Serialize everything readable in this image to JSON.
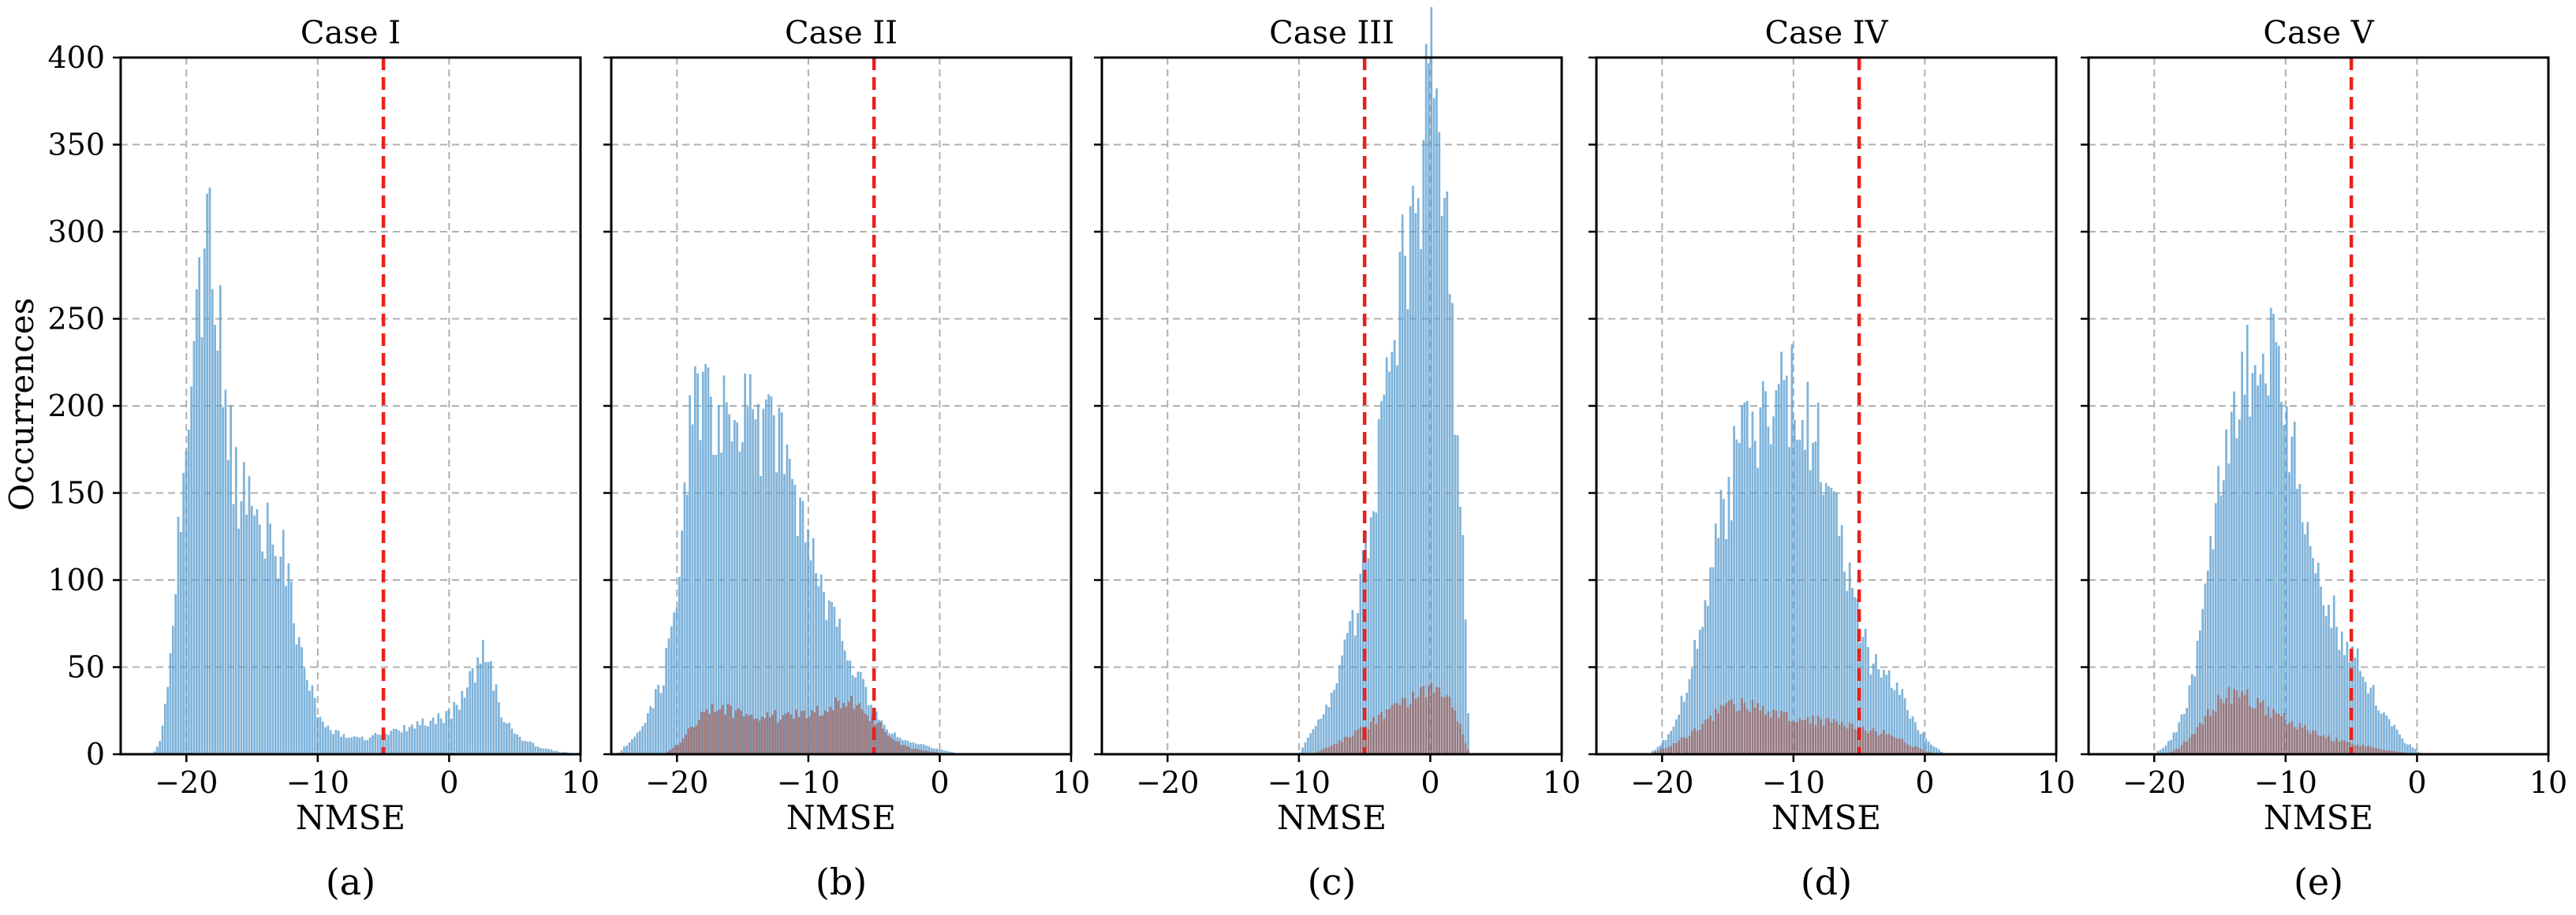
{
  "figure": {
    "ylabel": "Occurrences",
    "colors": {
      "primary": "#5b9ecf",
      "secondary": "#a0605a",
      "threshold": "#e8211b",
      "grid": "#b0b0b0"
    }
  },
  "chart_data": [
    {
      "type": "histogram",
      "title": "Case I",
      "subcaption": "(a)",
      "xlabel": "NMSE",
      "ylabel": "Occurrences",
      "xlim": [
        -25,
        10
      ],
      "ylim": [
        0,
        400
      ],
      "xticks": [
        -20,
        -10,
        0,
        10
      ],
      "xtick_labels": [
        "−20",
        "−10",
        "0",
        "10"
      ],
      "yticks": [
        0,
        50,
        100,
        150,
        200,
        250,
        300,
        350,
        400
      ],
      "ytick_labels": [
        "0",
        "50",
        "100",
        "150",
        "200",
        "250",
        "300",
        "350",
        "400"
      ],
      "threshold": -5,
      "series": [
        {
          "name": "primary",
          "points": [
            [
              -22.5,
              0
            ],
            [
              -22,
              8
            ],
            [
              -21.5,
              30
            ],
            [
              -21,
              75
            ],
            [
              -20.5,
              135
            ],
            [
              -20,
              190
            ],
            [
              -19.5,
              240
            ],
            [
              -19,
              270
            ],
            [
              -18.5,
              300
            ],
            [
              -18,
              280
            ],
            [
              -17.5,
              245
            ],
            [
              -17,
              205
            ],
            [
              -16.5,
              170
            ],
            [
              -16,
              150
            ],
            [
              -15.5,
              148
            ],
            [
              -15,
              140
            ],
            [
              -14.5,
              130
            ],
            [
              -14,
              125
            ],
            [
              -13.5,
              128
            ],
            [
              -13,
              120
            ],
            [
              -12.5,
              115
            ],
            [
              -12,
              90
            ],
            [
              -11.5,
              70
            ],
            [
              -11,
              55
            ],
            [
              -10.5,
              38
            ],
            [
              -10,
              25
            ],
            [
              -9.5,
              18
            ],
            [
              -9,
              14
            ],
            [
              -8.5,
              12
            ],
            [
              -8,
              11
            ],
            [
              -7.5,
              10
            ],
            [
              -7,
              9
            ],
            [
              -6.5,
              9
            ],
            [
              -6,
              10
            ],
            [
              -5.5,
              11
            ],
            [
              -5,
              12
            ],
            [
              -4,
              14
            ],
            [
              -3,
              16
            ],
            [
              -2,
              18
            ],
            [
              -1,
              20
            ],
            [
              0,
              22
            ],
            [
              1,
              32
            ],
            [
              2,
              48
            ],
            [
              2.5,
              60
            ],
            [
              3,
              52
            ],
            [
              3.5,
              38
            ],
            [
              4,
              22
            ],
            [
              5,
              12
            ],
            [
              6,
              7
            ],
            [
              7,
              4
            ],
            [
              8,
              2
            ],
            [
              9,
              1
            ],
            [
              10,
              0
            ]
          ]
        }
      ]
    },
    {
      "type": "histogram",
      "title": "Case II",
      "subcaption": "(b)",
      "xlabel": "NMSE",
      "xlim": [
        -25,
        10
      ],
      "ylim": [
        0,
        400
      ],
      "xticks": [
        -20,
        -10,
        0,
        10
      ],
      "xtick_labels": [
        "−20",
        "−10",
        "0",
        "10"
      ],
      "yticks": [
        0,
        50,
        100,
        150,
        200,
        250,
        300,
        350,
        400
      ],
      "threshold": -5,
      "series": [
        {
          "name": "primary",
          "points": [
            [
              -24.5,
              0
            ],
            [
              -24,
              4
            ],
            [
              -23,
              12
            ],
            [
              -22,
              25
            ],
            [
              -21,
              45
            ],
            [
              -20,
              85
            ],
            [
              -19.5,
              140
            ],
            [
              -19,
              180
            ],
            [
              -18.5,
              200
            ],
            [
              -18,
              205
            ],
            [
              -17,
              200
            ],
            [
              -16,
              196
            ],
            [
              -15,
              196
            ],
            [
              -14,
              192
            ],
            [
              -13,
              186
            ],
            [
              -12,
              170
            ],
            [
              -11,
              150
            ],
            [
              -10,
              122
            ],
            [
              -9,
              98
            ],
            [
              -8,
              78
            ],
            [
              -7,
              60
            ],
            [
              -6,
              42
            ],
            [
              -5,
              25
            ],
            [
              -4,
              15
            ],
            [
              -3,
              9
            ],
            [
              -2,
              6
            ],
            [
              -1,
              5
            ],
            [
              0,
              3
            ],
            [
              1,
              1
            ],
            [
              2,
              0
            ]
          ]
        },
        {
          "name": "secondary",
          "points": [
            [
              -21,
              0
            ],
            [
              -20,
              5
            ],
            [
              -19,
              14
            ],
            [
              -18,
              22
            ],
            [
              -17,
              27
            ],
            [
              -16,
              25
            ],
            [
              -15,
              22
            ],
            [
              -14,
              22
            ],
            [
              -13,
              24
            ],
            [
              -12,
              20
            ],
            [
              -11,
              22
            ],
            [
              -10,
              24
            ],
            [
              -9,
              26
            ],
            [
              -8,
              28
            ],
            [
              -7,
              30
            ],
            [
              -6,
              27
            ],
            [
              -5,
              20
            ],
            [
              -4,
              12
            ],
            [
              -3,
              6
            ],
            [
              -2,
              3
            ],
            [
              -1,
              2
            ],
            [
              0,
              1
            ],
            [
              1,
              0
            ]
          ]
        }
      ]
    },
    {
      "type": "histogram",
      "title": "Case III",
      "subcaption": "(c)",
      "xlabel": "NMSE",
      "xlim": [
        -25,
        10
      ],
      "ylim": [
        0,
        400
      ],
      "xticks": [
        -20,
        -10,
        0,
        10
      ],
      "xtick_labels": [
        "−20",
        "−10",
        "0",
        "10"
      ],
      "yticks": [
        0,
        50,
        100,
        150,
        200,
        250,
        300,
        350,
        400
      ],
      "threshold": -5,
      "series": [
        {
          "name": "primary",
          "points": [
            [
              -10,
              0
            ],
            [
              -9.5,
              6
            ],
            [
              -9,
              14
            ],
            [
              -8,
              25
            ],
            [
              -7,
              45
            ],
            [
              -6,
              70
            ],
            [
              -5,
              105
            ],
            [
              -4,
              160
            ],
            [
              -3,
              225
            ],
            [
              -2,
              285
            ],
            [
              -1,
              325
            ],
            [
              -0.5,
              350
            ],
            [
              0,
              375
            ],
            [
              0.5,
              365
            ],
            [
              1,
              330
            ],
            [
              1.5,
              270
            ],
            [
              2,
              200
            ],
            [
              2.5,
              120
            ],
            [
              3,
              0
            ]
          ]
        },
        {
          "name": "secondary",
          "points": [
            [
              -9,
              0
            ],
            [
              -8,
              3
            ],
            [
              -7,
              7
            ],
            [
              -6,
              11
            ],
            [
              -5,
              15
            ],
            [
              -4,
              20
            ],
            [
              -3,
              25
            ],
            [
              -2,
              29
            ],
            [
              -1,
              34
            ],
            [
              0,
              37
            ],
            [
              1,
              33
            ],
            [
              2,
              24
            ],
            [
              2.5,
              12
            ],
            [
              3,
              0
            ]
          ]
        }
      ]
    },
    {
      "type": "histogram",
      "title": "Case IV",
      "subcaption": "(d)",
      "xlabel": "NMSE",
      "xlim": [
        -25,
        10
      ],
      "ylim": [
        0,
        400
      ],
      "xticks": [
        -20,
        -10,
        0,
        10
      ],
      "xtick_labels": [
        "−20",
        "−10",
        "0",
        "10"
      ],
      "yticks": [
        0,
        50,
        100,
        150,
        200,
        250,
        300,
        350,
        400
      ],
      "threshold": -5,
      "series": [
        {
          "name": "primary",
          "points": [
            [
              -21,
              0
            ],
            [
              -20,
              6
            ],
            [
              -19,
              18
            ],
            [
              -18,
              40
            ],
            [
              -17,
              75
            ],
            [
              -16,
              115
            ],
            [
              -15,
              150
            ],
            [
              -14,
              175
            ],
            [
              -13,
              190
            ],
            [
              -12,
              198
            ],
            [
              -11,
              210
            ],
            [
              -10,
              205
            ],
            [
              -9,
              195
            ],
            [
              -8,
              175
            ],
            [
              -7,
              140
            ],
            [
              -6,
              105
            ],
            [
              -5,
              75
            ],
            [
              -4,
              52
            ],
            [
              -3,
              45
            ],
            [
              -2,
              38
            ],
            [
              -1,
              22
            ],
            [
              0,
              10
            ],
            [
              1,
              3
            ],
            [
              1.5,
              0
            ]
          ]
        },
        {
          "name": "secondary",
          "points": [
            [
              -21,
              0
            ],
            [
              -20,
              3
            ],
            [
              -19,
              6
            ],
            [
              -18,
              11
            ],
            [
              -17,
              17
            ],
            [
              -16,
              23
            ],
            [
              -15,
              28
            ],
            [
              -14,
              29
            ],
            [
              -13,
              27
            ],
            [
              -12,
              24
            ],
            [
              -11,
              22
            ],
            [
              -10,
              21
            ],
            [
              -9,
              20
            ],
            [
              -8,
              19
            ],
            [
              -7,
              18
            ],
            [
              -6,
              16
            ],
            [
              -5,
              15
            ],
            [
              -4,
              13
            ],
            [
              -3,
              12
            ],
            [
              -2,
              9
            ],
            [
              -1,
              5
            ],
            [
              0,
              2
            ],
            [
              1,
              0
            ]
          ]
        }
      ]
    },
    {
      "type": "histogram",
      "title": "Case V",
      "subcaption": "(e)",
      "xlabel": "NMSE",
      "xlim": [
        -25,
        10
      ],
      "ylim": [
        0,
        400
      ],
      "xticks": [
        -20,
        -10,
        0,
        10
      ],
      "xtick_labels": [
        "−20",
        "−10",
        "0",
        "10"
      ],
      "yticks": [
        0,
        50,
        100,
        150,
        200,
        250,
        300,
        350,
        400
      ],
      "threshold": -5,
      "series": [
        {
          "name": "primary",
          "points": [
            [
              -20,
              0
            ],
            [
              -19,
              6
            ],
            [
              -18,
              18
            ],
            [
              -17,
              45
            ],
            [
              -16,
              95
            ],
            [
              -15,
              150
            ],
            [
              -14,
              195
            ],
            [
              -13,
              225
            ],
            [
              -12,
              235
            ],
            [
              -11,
              225
            ],
            [
              -10,
              195
            ],
            [
              -9,
              160
            ],
            [
              -8,
              122
            ],
            [
              -7,
              95
            ],
            [
              -6,
              72
            ],
            [
              -5,
              60
            ],
            [
              -4,
              45
            ],
            [
              -3,
              30
            ],
            [
              -2,
              18
            ],
            [
              -1,
              8
            ],
            [
              0,
              2
            ],
            [
              0.5,
              0
            ]
          ]
        },
        {
          "name": "secondary",
          "points": [
            [
              -19,
              0
            ],
            [
              -18,
              4
            ],
            [
              -17,
              12
            ],
            [
              -16,
              22
            ],
            [
              -15,
              31
            ],
            [
              -14,
              35
            ],
            [
              -13,
              33
            ],
            [
              -12,
              28
            ],
            [
              -11,
              24
            ],
            [
              -10,
              20
            ],
            [
              -9,
              16
            ],
            [
              -8,
              13
            ],
            [
              -7,
              10
            ],
            [
              -6,
              8
            ],
            [
              -5,
              6
            ],
            [
              -4,
              5
            ],
            [
              -3,
              3
            ],
            [
              -2,
              2
            ],
            [
              -1,
              1
            ],
            [
              0,
              0
            ]
          ]
        }
      ]
    }
  ]
}
